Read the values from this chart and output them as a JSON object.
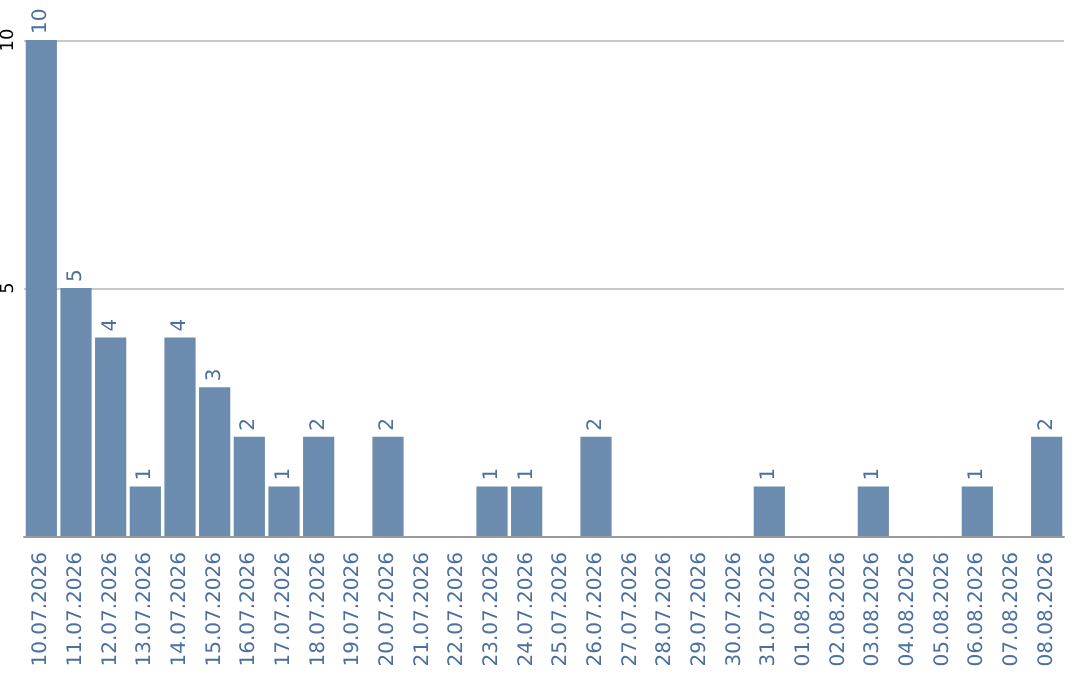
{
  "chart_data": {
    "type": "bar",
    "categories": [
      "10.07.2026",
      "11.07.2026",
      "12.07.2026",
      "13.07.2026",
      "14.07.2026",
      "15.07.2026",
      "16.07.2026",
      "17.07.2026",
      "18.07.2026",
      "19.07.2026",
      "20.07.2026",
      "21.07.2026",
      "22.07.2026",
      "23.07.2026",
      "24.07.2026",
      "25.07.2026",
      "26.07.2026",
      "27.07.2026",
      "28.07.2026",
      "29.07.2026",
      "30.07.2026",
      "31.07.2026",
      "01.08.2026",
      "02.08.2026",
      "03.08.2026",
      "04.08.2026",
      "05.08.2026",
      "06.08.2026",
      "07.08.2026",
      "08.08.2026"
    ],
    "values": [
      10,
      5,
      4,
      1,
      4,
      3,
      2,
      1,
      2,
      0,
      2,
      0,
      0,
      1,
      1,
      0,
      2,
      0,
      0,
      0,
      0,
      1,
      0,
      0,
      1,
      0,
      0,
      1,
      0,
      2
    ],
    "value_labels": [
      "10",
      "5",
      "4",
      "1",
      "4",
      "3",
      "2",
      "1",
      "2",
      null,
      "2",
      null,
      null,
      "1",
      "1",
      null,
      "2",
      null,
      null,
      null,
      null,
      "1",
      null,
      null,
      "1",
      null,
      null,
      "1",
      null,
      "2"
    ],
    "color": "#6b8cae",
    "ylim": [
      0,
      10
    ],
    "yticks": [
      {
        "value": 0,
        "label": null
      },
      5,
      10
    ],
    "grid": "y"
  }
}
